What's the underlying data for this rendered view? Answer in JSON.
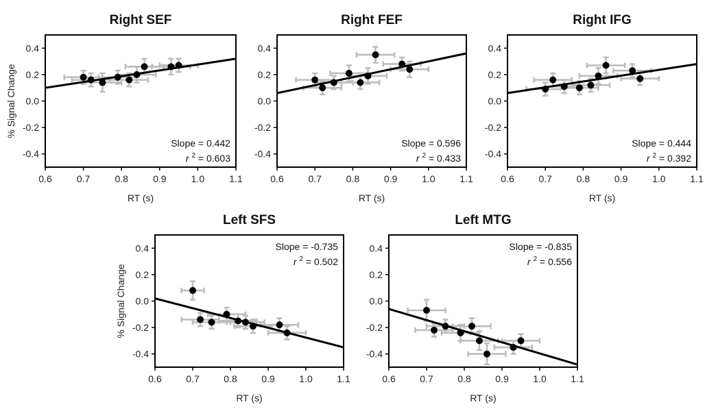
{
  "chart_data": [
    {
      "id": "right-sef",
      "type": "scatter",
      "title": "Right SEF",
      "xlabel": "RT (s)",
      "ylabel": "% Signal Change",
      "xlim": [
        0.6,
        1.1
      ],
      "ylim": [
        -0.5,
        0.5
      ],
      "xticks": [
        "0.6",
        "0.7",
        "0.8",
        "0.9",
        "1.0",
        "1.1"
      ],
      "yticks": [
        "0.4",
        "0.2",
        "0.0",
        "-0.2",
        "-0.4"
      ],
      "stats_position": "bottom-right",
      "slope_text": "Slope = 0.442",
      "r2_label": "r",
      "r2_sup": "2",
      "r2_value": "= 0.603",
      "fit": {
        "x": [
          0.6,
          1.1
        ],
        "y": [
          0.1,
          0.32
        ]
      },
      "points": [
        {
          "x": 0.7,
          "y": 0.18,
          "xerr": 0.05,
          "yerr": 0.05
        },
        {
          "x": 0.72,
          "y": 0.16,
          "xerr": 0.05,
          "yerr": 0.05
        },
        {
          "x": 0.75,
          "y": 0.14,
          "xerr": 0.05,
          "yerr": 0.07
        },
        {
          "x": 0.79,
          "y": 0.18,
          "xerr": 0.05,
          "yerr": 0.05
        },
        {
          "x": 0.82,
          "y": 0.16,
          "xerr": 0.05,
          "yerr": 0.05
        },
        {
          "x": 0.84,
          "y": 0.2,
          "xerr": 0.05,
          "yerr": 0.06
        },
        {
          "x": 0.86,
          "y": 0.26,
          "xerr": 0.05,
          "yerr": 0.06
        },
        {
          "x": 0.93,
          "y": 0.26,
          "xerr": 0.05,
          "yerr": 0.06
        },
        {
          "x": 0.95,
          "y": 0.27,
          "xerr": 0.05,
          "yerr": 0.05
        }
      ]
    },
    {
      "id": "right-fef",
      "type": "scatter",
      "title": "Right FEF",
      "xlabel": "RT (s)",
      "ylabel": "",
      "xlim": [
        0.6,
        1.1
      ],
      "ylim": [
        -0.5,
        0.5
      ],
      "xticks": [
        "0.6",
        "0.7",
        "0.8",
        "0.9",
        "1.0",
        "1.1"
      ],
      "yticks": [
        "0.4",
        "0.2",
        "0.0",
        "-0.2",
        "-0.4"
      ],
      "stats_position": "bottom-right",
      "slope_text": "Slope = 0.596",
      "r2_label": "r",
      "r2_sup": "2",
      "r2_value": "= 0.433",
      "fit": {
        "x": [
          0.6,
          1.1
        ],
        "y": [
          0.06,
          0.36
        ]
      },
      "points": [
        {
          "x": 0.7,
          "y": 0.16,
          "xerr": 0.05,
          "yerr": 0.05
        },
        {
          "x": 0.72,
          "y": 0.1,
          "xerr": 0.05,
          "yerr": 0.05
        },
        {
          "x": 0.75,
          "y": 0.14,
          "xerr": 0.05,
          "yerr": 0.05
        },
        {
          "x": 0.79,
          "y": 0.21,
          "xerr": 0.05,
          "yerr": 0.06
        },
        {
          "x": 0.82,
          "y": 0.14,
          "xerr": 0.05,
          "yerr": 0.05
        },
        {
          "x": 0.84,
          "y": 0.19,
          "xerr": 0.05,
          "yerr": 0.06
        },
        {
          "x": 0.86,
          "y": 0.35,
          "xerr": 0.05,
          "yerr": 0.06
        },
        {
          "x": 0.93,
          "y": 0.28,
          "xerr": 0.05,
          "yerr": 0.05
        },
        {
          "x": 0.95,
          "y": 0.24,
          "xerr": 0.05,
          "yerr": 0.06
        }
      ]
    },
    {
      "id": "right-ifg",
      "type": "scatter",
      "title": "Right IFG",
      "xlabel": "RT (s)",
      "ylabel": "",
      "xlim": [
        0.6,
        1.1
      ],
      "ylim": [
        -0.5,
        0.5
      ],
      "xticks": [
        "0.6",
        "0.7",
        "0.8",
        "0.9",
        "1.0",
        "1.1"
      ],
      "yticks": [
        "0.4",
        "0.2",
        "0.0",
        "-0.2",
        "-0.4"
      ],
      "stats_position": "bottom-right",
      "slope_text": "Slope = 0.444",
      "r2_label": "r",
      "r2_sup": "2",
      "r2_value": "= 0.392",
      "fit": {
        "x": [
          0.6,
          1.1
        ],
        "y": [
          0.06,
          0.28
        ]
      },
      "points": [
        {
          "x": 0.7,
          "y": 0.09,
          "xerr": 0.05,
          "yerr": 0.05
        },
        {
          "x": 0.72,
          "y": 0.16,
          "xerr": 0.05,
          "yerr": 0.05
        },
        {
          "x": 0.75,
          "y": 0.11,
          "xerr": 0.05,
          "yerr": 0.05
        },
        {
          "x": 0.79,
          "y": 0.1,
          "xerr": 0.05,
          "yerr": 0.05
        },
        {
          "x": 0.82,
          "y": 0.12,
          "xerr": 0.05,
          "yerr": 0.05
        },
        {
          "x": 0.84,
          "y": 0.19,
          "xerr": 0.05,
          "yerr": 0.06
        },
        {
          "x": 0.86,
          "y": 0.27,
          "xerr": 0.05,
          "yerr": 0.06
        },
        {
          "x": 0.93,
          "y": 0.23,
          "xerr": 0.05,
          "yerr": 0.05
        },
        {
          "x": 0.95,
          "y": 0.17,
          "xerr": 0.05,
          "yerr": 0.05
        }
      ]
    },
    {
      "id": "left-sfs",
      "type": "scatter",
      "title": "Left SFS",
      "xlabel": "RT (s)",
      "ylabel": "% Signal Change",
      "xlim": [
        0.6,
        1.1
      ],
      "ylim": [
        -0.5,
        0.5
      ],
      "xticks": [
        "0.6",
        "0.7",
        "0.8",
        "0.9",
        "1.0",
        "1.1"
      ],
      "yticks": [
        "0.4",
        "0.2",
        "0.0",
        "-0.2",
        "-0.4"
      ],
      "stats_position": "top-right",
      "slope_text": "Slope = -0.735",
      "r2_label": "r",
      "r2_sup": "2",
      "r2_value": "= 0.502",
      "fit": {
        "x": [
          0.6,
          1.1
        ],
        "y": [
          0.02,
          -0.35
        ]
      },
      "points": [
        {
          "x": 0.7,
          "y": 0.08,
          "xerr": 0.03,
          "yerr": 0.07
        },
        {
          "x": 0.72,
          "y": -0.14,
          "xerr": 0.05,
          "yerr": 0.05
        },
        {
          "x": 0.75,
          "y": -0.16,
          "xerr": 0.05,
          "yerr": 0.05
        },
        {
          "x": 0.79,
          "y": -0.1,
          "xerr": 0.05,
          "yerr": 0.05
        },
        {
          "x": 0.82,
          "y": -0.15,
          "xerr": 0.05,
          "yerr": 0.05
        },
        {
          "x": 0.84,
          "y": -0.16,
          "xerr": 0.05,
          "yerr": 0.05
        },
        {
          "x": 0.86,
          "y": -0.19,
          "xerr": 0.05,
          "yerr": 0.05
        },
        {
          "x": 0.93,
          "y": -0.18,
          "xerr": 0.05,
          "yerr": 0.05
        },
        {
          "x": 0.95,
          "y": -0.24,
          "xerr": 0.05,
          "yerr": 0.05
        }
      ]
    },
    {
      "id": "left-mtg",
      "type": "scatter",
      "title": "Left MTG",
      "xlabel": "RT (s)",
      "ylabel": "",
      "xlim": [
        0.6,
        1.1
      ],
      "ylim": [
        -0.5,
        0.5
      ],
      "xticks": [
        "0.6",
        "0.7",
        "0.8",
        "0.9",
        "1.0",
        "1.1"
      ],
      "yticks": [
        "0.4",
        "0.2",
        "0.0",
        "-0.2",
        "-0.4"
      ],
      "stats_position": "top-right",
      "slope_text": "Slope = -0.835",
      "r2_label": "r",
      "r2_sup": "2",
      "r2_value": "= 0.556",
      "fit": {
        "x": [
          0.6,
          1.1
        ],
        "y": [
          -0.06,
          -0.48
        ]
      },
      "points": [
        {
          "x": 0.7,
          "y": -0.07,
          "xerr": 0.05,
          "yerr": 0.08
        },
        {
          "x": 0.72,
          "y": -0.22,
          "xerr": 0.05,
          "yerr": 0.05
        },
        {
          "x": 0.75,
          "y": -0.19,
          "xerr": 0.05,
          "yerr": 0.05
        },
        {
          "x": 0.79,
          "y": -0.24,
          "xerr": 0.05,
          "yerr": 0.06
        },
        {
          "x": 0.82,
          "y": -0.19,
          "xerr": 0.05,
          "yerr": 0.06
        },
        {
          "x": 0.84,
          "y": -0.3,
          "xerr": 0.05,
          "yerr": 0.07
        },
        {
          "x": 0.86,
          "y": -0.4,
          "xerr": 0.05,
          "yerr": 0.08
        },
        {
          "x": 0.93,
          "y": -0.35,
          "xerr": 0.05,
          "yerr": 0.05
        },
        {
          "x": 0.95,
          "y": -0.3,
          "xerr": 0.05,
          "yerr": 0.05
        }
      ]
    }
  ]
}
